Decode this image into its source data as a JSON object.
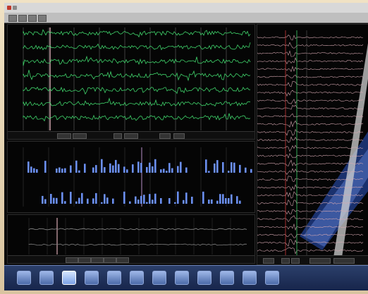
{
  "window": {
    "app_title": "",
    "file_title": ""
  },
  "colors": {
    "trace_green": "#3fd26a",
    "bar_blue": "#6b8ff0",
    "panel_bg": "#050505",
    "right_trace": "#d7a9b2",
    "band_blue": "#274aa8"
  },
  "eeg_panel": {
    "channels": [
      "",
      "",
      "",
      "",
      "",
      ""
    ]
  },
  "bars_panel": {
    "rows": 2
  },
  "trend_panel": {
    "rows": 2
  },
  "taskbar": {
    "items": [
      {
        "name": "icon-1"
      },
      {
        "name": "icon-2"
      },
      {
        "name": "icon-3"
      },
      {
        "name": "icon-4"
      },
      {
        "name": "icon-5"
      },
      {
        "name": "icon-6"
      },
      {
        "name": "icon-7"
      },
      {
        "name": "icon-8"
      },
      {
        "name": "icon-9"
      },
      {
        "name": "icon-10"
      },
      {
        "name": "icon-11"
      },
      {
        "name": "icon-12"
      }
    ]
  }
}
